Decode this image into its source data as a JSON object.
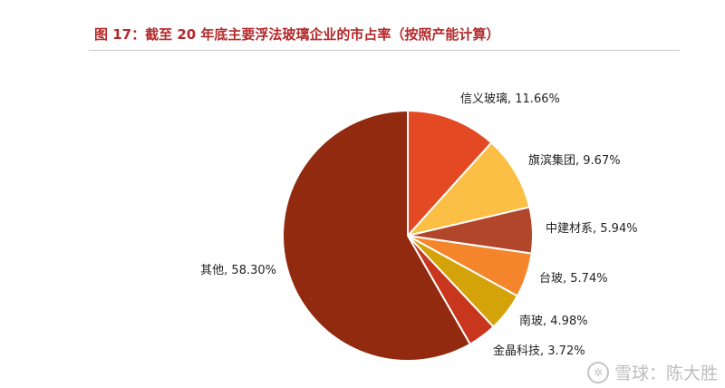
{
  "figure": {
    "title": "图 17：截至 20 年底主要浮法玻璃企业的市占率（按照产能计算）"
  },
  "chart_data": {
    "type": "pie",
    "title": "图 17：截至 20 年底主要浮法玻璃企业的市占率（按照产能计算）",
    "slices": [
      {
        "name": "信义玻璃",
        "value": 11.66,
        "label": "信义玻璃, 11.66%",
        "color": "#e34a23"
      },
      {
        "name": "旗滨集团",
        "value": 9.67,
        "label": "旗滨集团, 9.67%",
        "color": "#fbbf45"
      },
      {
        "name": "中建材系",
        "value": 5.94,
        "label": "中建材系, 5.94%",
        "color": "#b1462b"
      },
      {
        "name": "台玻",
        "value": 5.74,
        "label": "台玻, 5.74%",
        "color": "#f5852a"
      },
      {
        "name": "南玻",
        "value": 4.98,
        "label": "南玻, 4.98%",
        "color": "#d4a30a"
      },
      {
        "name": "金晶科技",
        "value": 3.72,
        "label": "金晶科技, 3.72%",
        "color": "#c8361d"
      },
      {
        "name": "其他",
        "value": 58.3,
        "label": "其他, 58.30%",
        "color": "#922a10"
      }
    ],
    "start_angle": "12 o'clock",
    "direction": "clockwise",
    "legend": "none"
  },
  "watermark": {
    "text": "雪球：陈大胜",
    "logo_icon": "snowball-logo-icon"
  }
}
